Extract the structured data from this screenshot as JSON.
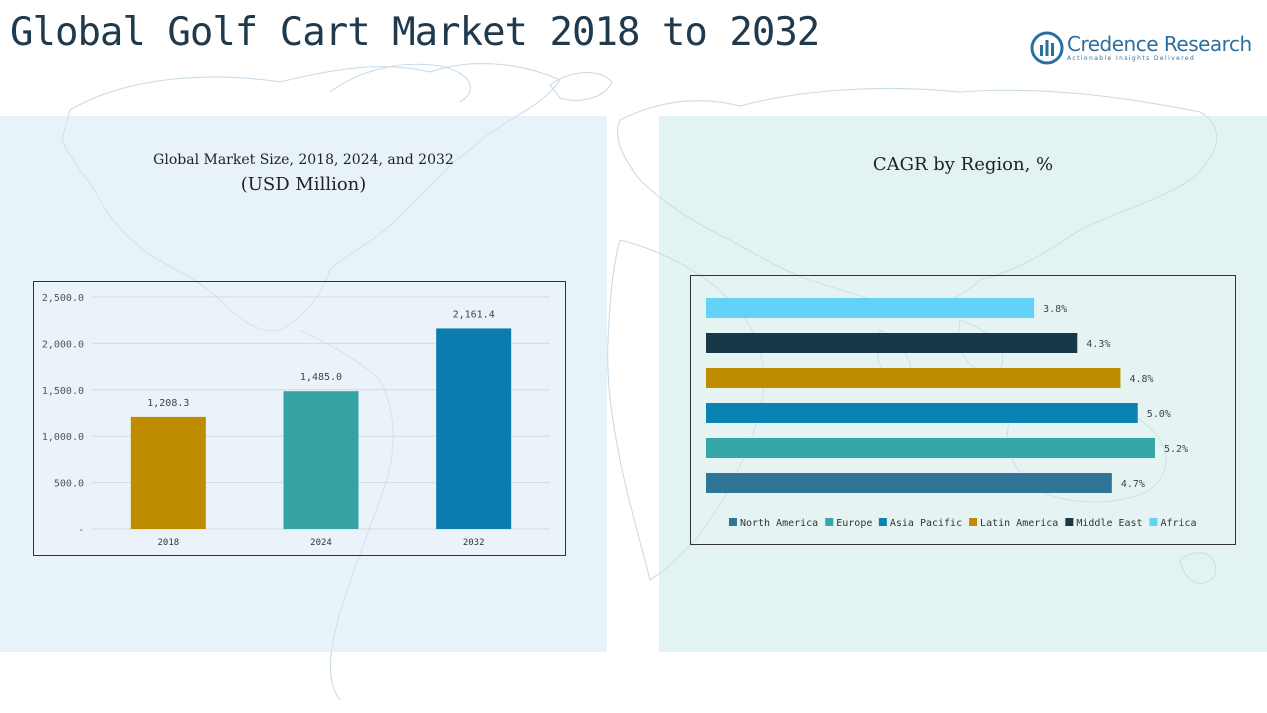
{
  "page": {
    "title": "Global Golf Cart Market 2018 to 2032"
  },
  "brand": {
    "name": "Credence Research",
    "tagline": "Actionable Insights Delivered",
    "color": "#2b6f9e"
  },
  "chart_data": [
    {
      "type": "bar",
      "title": "Global Market Size, 2018, 2024, and 2032",
      "subtitle": "(USD Million)",
      "categories": [
        "2018",
        "2024",
        "2032"
      ],
      "values": [
        1208.3,
        1485.0,
        2161.4
      ],
      "value_labels": [
        "1,208.3",
        "1,485.0",
        "2,161.4"
      ],
      "colors": [
        "#bf8c00",
        "#35a3a3",
        "#0a7cad"
      ],
      "ylim": [
        0,
        2500
      ],
      "yticks": [
        0,
        500,
        1000,
        1500,
        2000,
        2500
      ],
      "ytick_labels": [
        "-",
        "500.0",
        "1,000.0",
        "1,500.0",
        "2,000.0",
        "2,500.0"
      ],
      "grid": true
    },
    {
      "type": "bar",
      "orientation": "horizontal",
      "title": "CAGR by Region, %",
      "series": [
        {
          "name": "North America",
          "value": 4.7,
          "label": "4.7%",
          "color": "#2e7597"
        },
        {
          "name": "Europe",
          "value": 5.2,
          "label": "5.2%",
          "color": "#36a6a6"
        },
        {
          "name": "Asia Pacific",
          "value": 5.0,
          "label": "5.0%",
          "color": "#0a82b4"
        },
        {
          "name": "Latin America",
          "value": 4.8,
          "label": "4.8%",
          "color": "#bf8c00"
        },
        {
          "name": "Middle East",
          "value": 4.3,
          "label": "4.3%",
          "color": "#183848"
        },
        {
          "name": "Africa",
          "value": 3.8,
          "label": "3.8%",
          "color": "#64d2f7"
        }
      ],
      "xlim": [
        0,
        5.2
      ],
      "legend": "bottom"
    }
  ]
}
